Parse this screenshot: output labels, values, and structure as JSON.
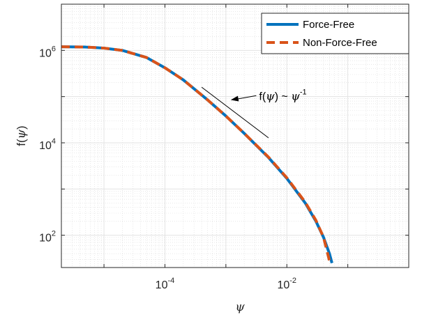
{
  "chart_data": {
    "type": "line",
    "xscale": "log",
    "yscale": "log",
    "xlim": [
      2e-06,
      1
    ],
    "ylim": [
      20,
      10000000.0
    ],
    "grid": true,
    "minor_grid": true,
    "xlabel": "ψ",
    "ylabel": {
      "prefix": "f(",
      "var": "ψ",
      "suffix": ")"
    },
    "xticks": [
      {
        "value": 0.0001,
        "base": "10",
        "exp": "-4"
      },
      {
        "value": 0.01,
        "base": "10",
        "exp": "-2"
      }
    ],
    "yticks": [
      {
        "value": 100,
        "base": "10",
        "exp": "2"
      },
      {
        "value": 10000,
        "base": "10",
        "exp": "4"
      },
      {
        "value": 1000000,
        "base": "10",
        "exp": "6"
      }
    ],
    "legend_position": "top-right",
    "series": [
      {
        "name": "Force-Free",
        "color": "#0072BD",
        "style": "solid",
        "x": [
          2e-06,
          5e-06,
          1e-05,
          2e-05,
          5e-05,
          0.0001,
          0.0002,
          0.0005,
          0.001,
          0.002,
          0.005,
          0.01,
          0.02,
          0.03,
          0.04,
          0.05,
          0.055
        ],
        "y": [
          1200000.0,
          1180000.0,
          1120000.0,
          1000000.0,
          700000.0,
          420000.0,
          230000.0,
          85000.0,
          38000.0,
          16000.0,
          4800.0,
          1700.0,
          500,
          200,
          90,
          40,
          25
        ]
      },
      {
        "name": "Non-Force-Free",
        "color": "#D95319",
        "style": "dashed",
        "x": [
          2e-06,
          5e-06,
          1e-05,
          2e-05,
          5e-05,
          0.0001,
          0.0002,
          0.0005,
          0.001,
          0.002,
          0.005,
          0.01,
          0.02,
          0.03,
          0.04,
          0.05
        ],
        "y": [
          1200000.0,
          1180000.0,
          1120000.0,
          1000000.0,
          700000.0,
          420000.0,
          230000.0,
          85000.0,
          38000.0,
          16000.0,
          4900.0,
          1750.0,
          520,
          210,
          90,
          28
        ]
      }
    ],
    "reference_line": {
      "x": [
        0.0004,
        0.005
      ],
      "y": [
        160000.0,
        12800.0
      ],
      "color": "#000000"
    },
    "annotation": {
      "text_prefix": "f(",
      "var": "ψ",
      "text_mid": ") ~ ",
      "power_exp": "-1",
      "text_x": 0.0035,
      "text_y": 105000.0,
      "arrow_head_x": 0.0012,
      "arrow_head_y": 85000.0
    }
  }
}
